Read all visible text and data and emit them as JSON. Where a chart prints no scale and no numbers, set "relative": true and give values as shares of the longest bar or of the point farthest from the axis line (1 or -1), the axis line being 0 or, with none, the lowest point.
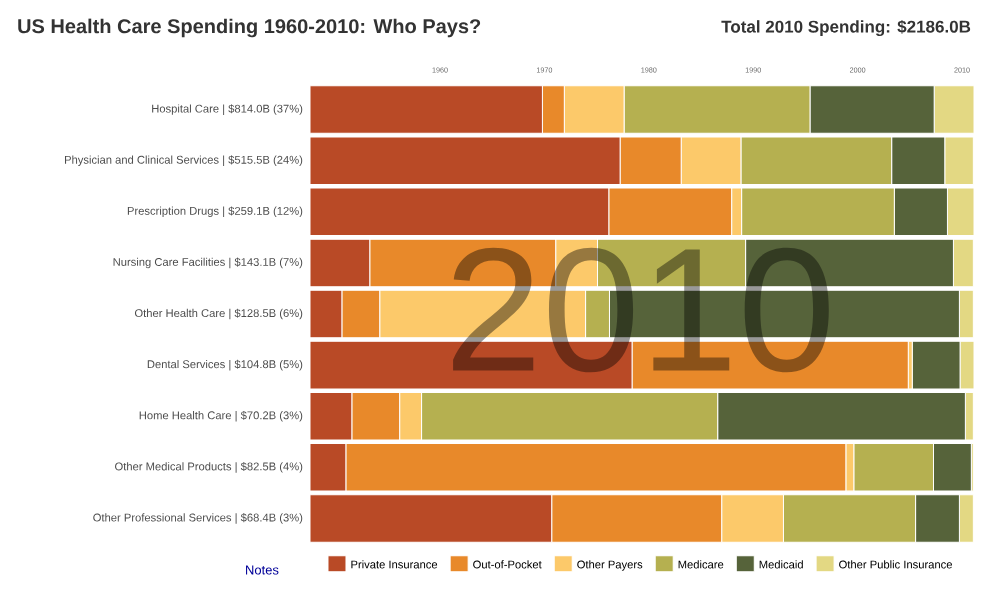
{
  "chart_data": {
    "type": "bar",
    "orientation": "horizontal",
    "stacked": true,
    "relative": true,
    "legend": "bottom",
    "title": "US Health Care Spending 1960-2010: Who Pays?",
    "subtitle": "Total 2010 Spending: $2186.0B",
    "annotations": [
      "2010",
      "Notes",
      "1960",
      "1970",
      "1980",
      "1990",
      "2000",
      "2010"
    ],
    "categories": [
      "Hospital Care | $814.0B (37%)",
      "Physician and Clinical Services | $515.5B (24%)",
      "Prescription Drugs | $259.1B (12%)",
      "Nursing Care Facilities | $143.1B (7%)",
      "Other Health Care | $128.5B (6%)",
      "Dental Services | $104.8B (5%)",
      "Home Health Care | $70.2B (3%)",
      "Other Medical Products | $82.5B (4%)",
      "Other Professional Services | $68.4B (3%)"
    ],
    "series": [
      {
        "name": "Private Insurance",
        "color": "#b94a26",
        "values": [
          0.35,
          0.467,
          0.45,
          0.09,
          0.048,
          0.485,
          0.063,
          0.054,
          0.364
        ]
      },
      {
        "name": "Out-of-Pocket",
        "color": "#e8892a",
        "values": [
          0.033,
          0.092,
          0.185,
          0.28,
          0.057,
          0.416,
          0.072,
          0.753,
          0.256
        ]
      },
      {
        "name": "Other Payers",
        "color": "#fcc96a",
        "values": [
          0.09,
          0.09,
          0.015,
          0.063,
          0.31,
          0.006,
          0.033,
          0.012,
          0.093
        ]
      },
      {
        "name": "Medicare",
        "color": "#b5b050",
        "values": [
          0.28,
          0.227,
          0.23,
          0.223,
          0.036,
          0.0,
          0.446,
          0.12,
          0.199
        ]
      },
      {
        "name": "Medicaid",
        "color": "#56633a",
        "values": [
          0.187,
          0.08,
          0.08,
          0.313,
          0.527,
          0.072,
          0.373,
          0.057,
          0.066
        ]
      },
      {
        "name": "Other Public Insurance",
        "color": "#e3d883",
        "values": [
          0.06,
          0.043,
          0.04,
          0.03,
          0.021,
          0.021,
          0.012,
          0.003,
          0.021
        ]
      }
    ]
  }
}
